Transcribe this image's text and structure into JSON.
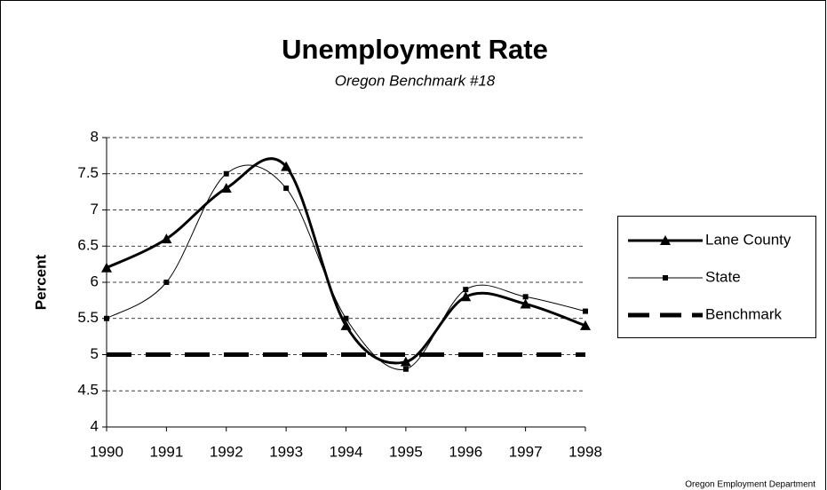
{
  "chart_data": {
    "type": "line",
    "title": "Unemployment Rate",
    "subtitle": "Oregon Benchmark #18",
    "y_label": "Percent",
    "source": "Oregon Employment Department",
    "x": [
      1990,
      1991,
      1992,
      1993,
      1994,
      1995,
      1996,
      1997,
      1998
    ],
    "xlim": [
      1990,
      1998
    ],
    "xticks": [
      1990,
      1991,
      1992,
      1993,
      1994,
      1995,
      1996,
      1997,
      1998
    ],
    "ylim": [
      4,
      8
    ],
    "yticks": [
      4,
      4.5,
      5,
      5.5,
      6,
      6.5,
      7,
      7.5,
      8
    ],
    "grid": true,
    "legend": "right",
    "series": [
      {
        "name": "Lane County",
        "color": "#000000",
        "marker": "triangle",
        "style": "thick-smooth",
        "values": [
          6.2,
          6.6,
          7.3,
          7.6,
          5.4,
          4.9,
          5.8,
          5.7,
          5.4
        ]
      },
      {
        "name": "State",
        "color": "#000000",
        "marker": "square",
        "style": "thin-smooth",
        "values": [
          5.5,
          6.0,
          7.5,
          7.3,
          5.5,
          4.8,
          5.9,
          5.8,
          5.6
        ]
      },
      {
        "name": "Benchmark",
        "color": "#000000",
        "marker": "none",
        "style": "dashed",
        "values": [
          5,
          5,
          5,
          5,
          5,
          5,
          5,
          5,
          5
        ]
      }
    ]
  }
}
